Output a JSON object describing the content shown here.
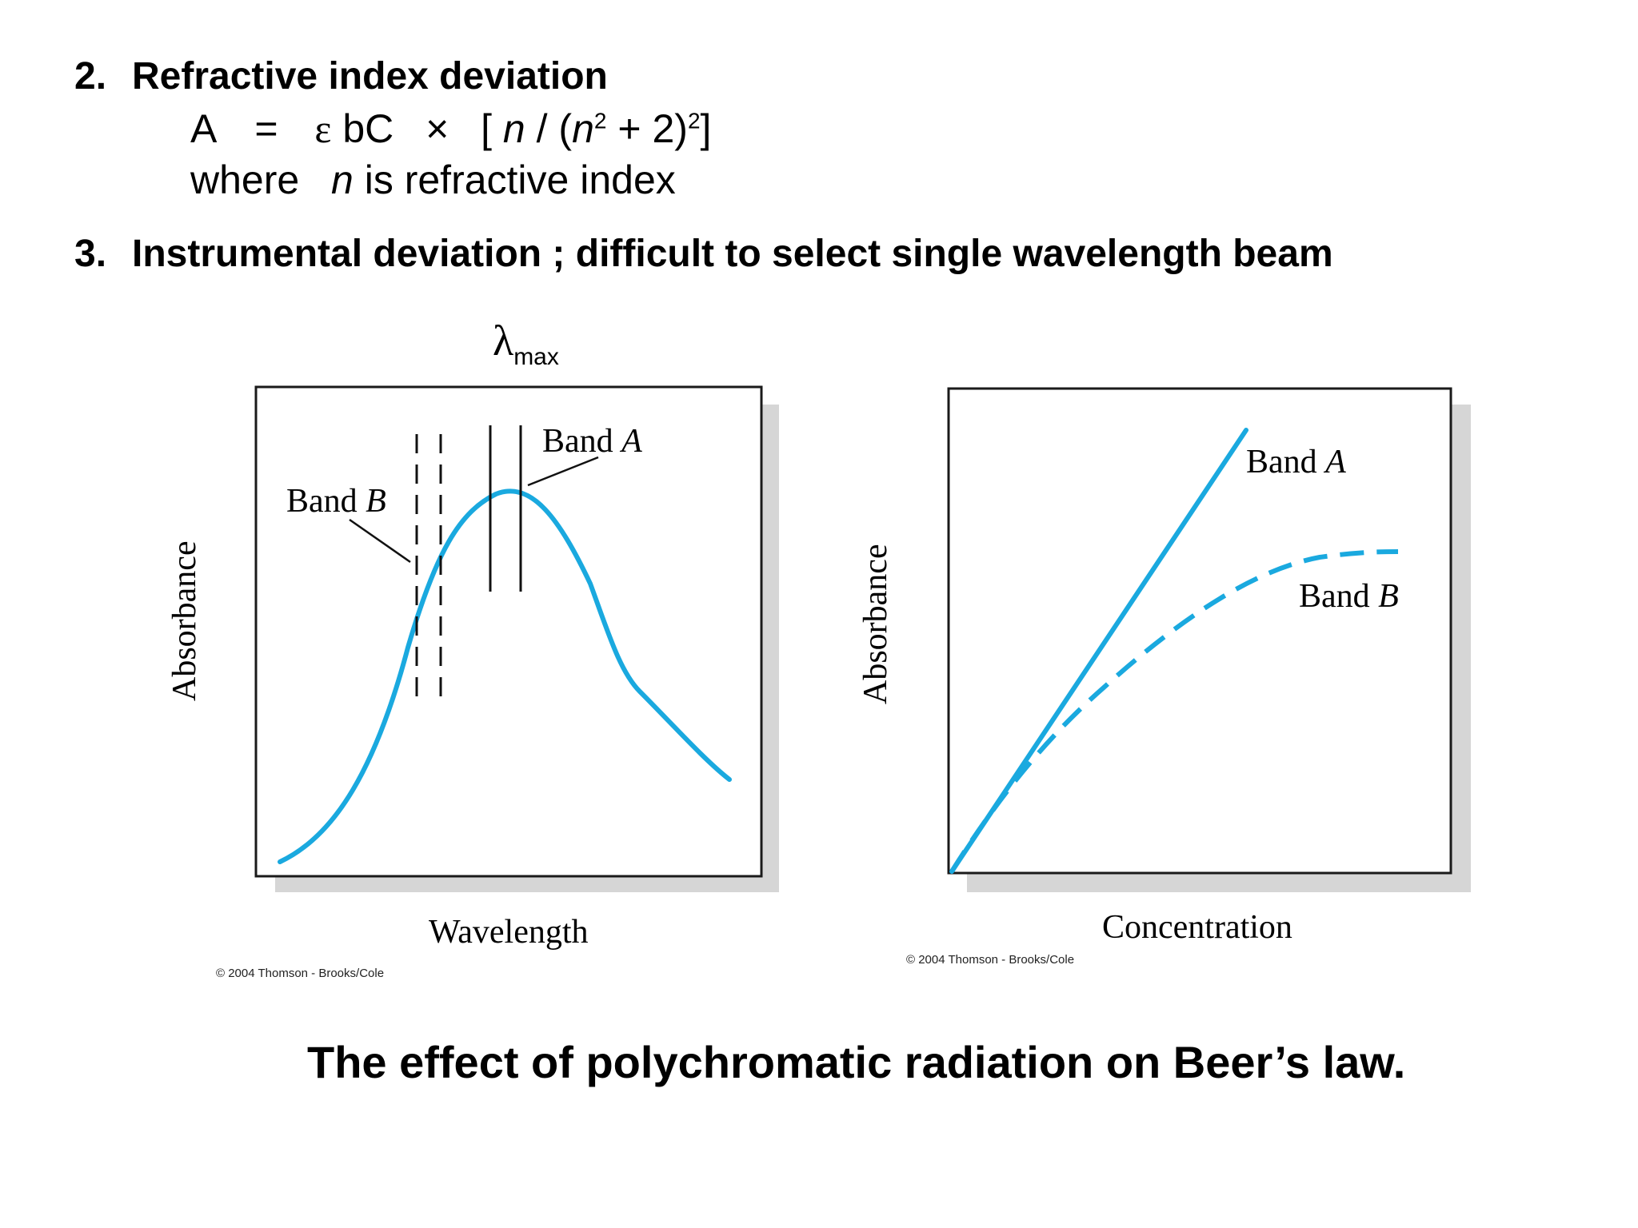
{
  "items": [
    {
      "number": "2.",
      "heading": "Refractive index deviation",
      "equation": {
        "a": "A",
        "eq": "=",
        "eps": "ε",
        "bc": "bC",
        "times": "×",
        "open": "[",
        "n1": "n",
        "slash": "/",
        "paren": "(",
        "n2": "n",
        "sup1": "2",
        "plus": "+ 2)",
        "sup2": "2",
        "close": "]"
      },
      "where_prefix": "where",
      "where_var": "n",
      "where_suffix": "is refractive index"
    },
    {
      "number": "3.",
      "heading": "Instrumental deviation ; difficult to select single wavelength beam"
    }
  ],
  "lambda_label": {
    "symbol": "λ",
    "sub": "max"
  },
  "left_chart": {
    "xlabel": "Wavelength",
    "ylabel": "Absorbance",
    "band_a_label": "Band",
    "band_a_letter": "A",
    "band_b_label": "Band",
    "band_b_letter": "B",
    "copyright": "© 2004 Thomson - Brooks/Cole"
  },
  "right_chart": {
    "xlabel": "Concentration",
    "ylabel": "Absorbance",
    "band_a_label": "Band",
    "band_a_letter": "A",
    "band_b_label": "Band",
    "band_b_letter": "B",
    "copyright": "© 2004 Thomson - Brooks/Cole"
  },
  "caption": "The effect of polychromatic radiation on Beer’s law.",
  "colors": {
    "curve": "#1aa9df",
    "frame": "#1a1a1a",
    "shadow": "#d4d4d4"
  }
}
